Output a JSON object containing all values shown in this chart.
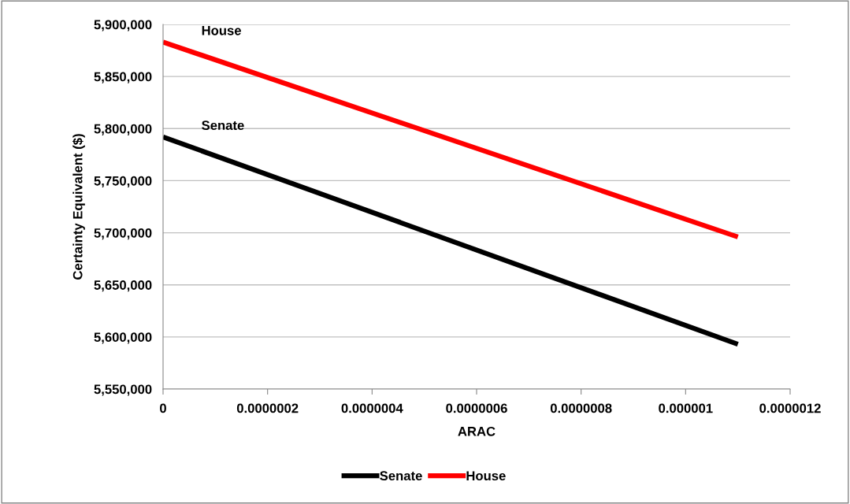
{
  "chart_data": {
    "type": "line",
    "xlabel": "ARAC",
    "ylabel": "Certainty Equivalent ($)",
    "series": [
      {
        "name": "Senate",
        "color": "#000000",
        "values": [
          5792000,
          5593000
        ]
      },
      {
        "name": "House",
        "color": "#ff0000",
        "values": [
          5883000,
          5696000
        ]
      }
    ],
    "x": [
      0,
      1.1e-06
    ],
    "xlim": [
      0,
      1.2e-06
    ],
    "xticks": [
      0,
      {
        "value": 2e-07,
        "label": "0.0000002"
      },
      {
        "value": 4e-07,
        "label": "0.0000004"
      },
      {
        "value": 6e-07,
        "label": "0.0000006"
      },
      {
        "value": 8e-07,
        "label": "0.0000008"
      },
      {
        "value": 1e-06,
        "label": "0.000001"
      },
      {
        "value": 1.2e-06,
        "label": "0.0000012"
      }
    ],
    "ylim": [
      5550000,
      5900000
    ],
    "yticks": [
      {
        "value": 5550000,
        "label": "5,550,000"
      },
      {
        "value": 5600000,
        "label": "5,600,000"
      },
      {
        "value": 5650000,
        "label": "5,650,000"
      },
      {
        "value": 5700000,
        "label": "5,700,000"
      },
      {
        "value": 5750000,
        "label": "5,750,000"
      },
      {
        "value": 5800000,
        "label": "5,800,000"
      },
      {
        "value": 5850000,
        "label": "5,850,000"
      },
      {
        "value": 5900000,
        "label": "5,900,000"
      }
    ],
    "grid": "y",
    "legend": "bottom",
    "marker": "none",
    "line_style": "solid"
  }
}
